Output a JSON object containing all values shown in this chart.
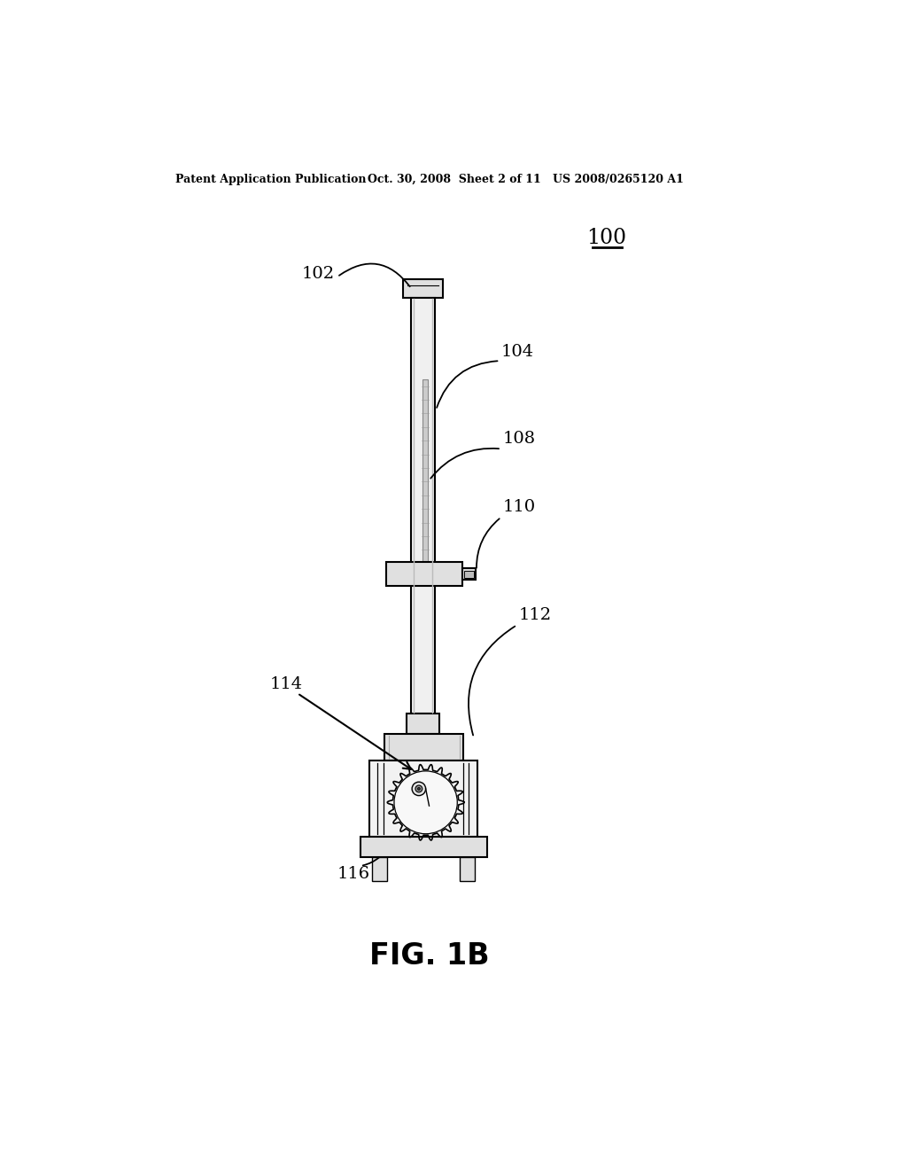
{
  "bg_color": "#ffffff",
  "header_left": "Patent Application Publication",
  "header_mid": "Oct. 30, 2008  Sheet 2 of 11",
  "header_right": "US 2008/0265120 A1",
  "figure_label": "FIG. 1B",
  "ref_100": "100",
  "ref_102": "102",
  "ref_104": "104",
  "ref_108": "108",
  "ref_110": "110",
  "ref_112": "112",
  "ref_114": "114",
  "ref_116": "116",
  "line_color": "#000000",
  "text_color": "#000000",
  "col_fill": "#f0f0f0",
  "cap_fill": "#e0e0e0",
  "gear_fill": "#f8f8f8",
  "box_fill": "#f2f2f2"
}
